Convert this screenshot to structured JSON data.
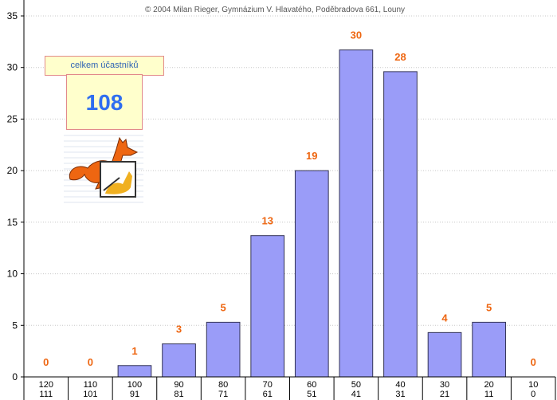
{
  "header": {
    "copyright": "© 2004 Milan Rieger, Gymnázium V. Hlavatého, Poděbradova 661, Louny"
  },
  "summary": {
    "label": "celkem účastníků",
    "value": "108"
  },
  "logo": {
    "icon": "kangaroo-logo-icon"
  },
  "colors": {
    "bar_fill": "#9a9cf8",
    "bar_stroke": "#333355",
    "data_label": "#ee6611",
    "grid": "#c8c8c8"
  },
  "chart_data": {
    "type": "bar",
    "title": "",
    "xlabel": "",
    "ylabel": "",
    "ylim": [
      0,
      35
    ],
    "yticks": [
      0,
      5,
      10,
      15,
      20,
      25,
      30,
      35
    ],
    "grid": "horizontal dotted",
    "categories": [
      [
        "120",
        "111"
      ],
      [
        "110",
        "101"
      ],
      [
        "100",
        "91"
      ],
      [
        "90",
        "81"
      ],
      [
        "80",
        "71"
      ],
      [
        "70",
        "61"
      ],
      [
        "60",
        "51"
      ],
      [
        "50",
        "41"
      ],
      [
        "40",
        "31"
      ],
      [
        "30",
        "21"
      ],
      [
        "20",
        "11"
      ],
      [
        "10",
        "0"
      ]
    ],
    "values": [
      0,
      0,
      1,
      3,
      5,
      13,
      19,
      30,
      28,
      4,
      5,
      0
    ],
    "bar_heights": [
      0,
      0,
      1.1,
      3.2,
      5.3,
      13.7,
      20,
      31.7,
      29.6,
      4.3,
      5.3,
      0
    ]
  }
}
